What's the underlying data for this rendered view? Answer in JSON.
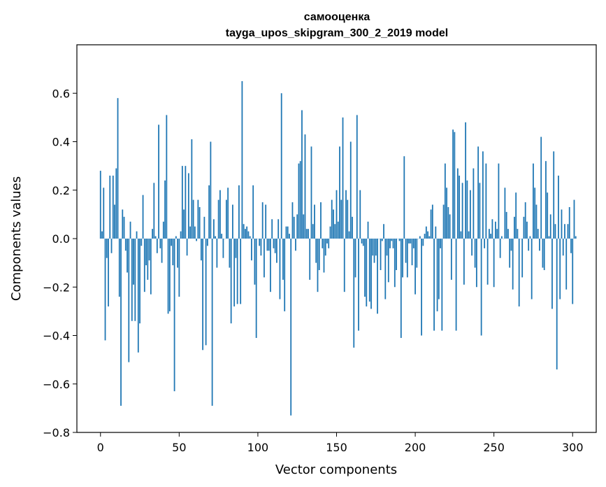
{
  "chart_data": {
    "type": "bar",
    "title": "самооценка",
    "subtitle": "tayga_upos_skipgram_300_2_2019 model",
    "xlabel": "Vector components",
    "ylabel": "Components values",
    "xlim": [
      -15,
      315
    ],
    "ylim": [
      -0.8,
      0.8
    ],
    "xticks": [
      0,
      50,
      100,
      150,
      200,
      250,
      300
    ],
    "yticks": [
      -0.8,
      -0.6,
      -0.4,
      -0.2,
      0.0,
      0.2,
      0.4,
      0.6
    ],
    "ytick_labels": [
      "−0.8",
      "−0.6",
      "−0.4",
      "−0.2",
      "0.0",
      "0.2",
      "0.4",
      "0.6"
    ],
    "xtick_labels": [
      "0",
      "50",
      "100",
      "150",
      "200",
      "250",
      "300"
    ],
    "bar_color": "#1f77b4",
    "values": [
      0.28,
      0.03,
      0.21,
      -0.42,
      -0.08,
      -0.28,
      0.26,
      -0.06,
      0.26,
      0.14,
      0.29,
      0.58,
      -0.24,
      -0.69,
      0.12,
      0.09,
      -0.05,
      -0.14,
      -0.51,
      0.07,
      -0.34,
      -0.19,
      -0.34,
      0.03,
      -0.47,
      -0.35,
      -0.03,
      0.18,
      -0.22,
      -0.11,
      -0.17,
      -0.09,
      -0.23,
      0.04,
      0.23,
      0.01,
      -0.06,
      0.47,
      -0.04,
      -0.1,
      0.07,
      0.24,
      0.51,
      -0.31,
      -0.3,
      -0.03,
      -0.11,
      -0.63,
      0.01,
      -0.12,
      -0.24,
      0.03,
      0.3,
      0.12,
      0.3,
      -0.07,
      0.27,
      0.05,
      0.41,
      0.16,
      0.05,
      -0.01,
      0.16,
      0.13,
      -0.09,
      -0.46,
      0.09,
      -0.44,
      -0.03,
      0.22,
      0.4,
      -0.69,
      0.08,
      0.01,
      -0.12,
      0.16,
      0.2,
      0.02,
      -0.08,
      0.0,
      0.16,
      0.21,
      -0.12,
      -0.35,
      0.14,
      -0.28,
      -0.08,
      -0.27,
      0.22,
      -0.27,
      0.65,
      0.06,
      0.04,
      0.05,
      0.03,
      0.01,
      -0.09,
      0.22,
      -0.19,
      -0.41,
      0.0,
      -0.03,
      -0.07,
      0.15,
      -0.16,
      0.14,
      -0.05,
      -0.05,
      -0.22,
      0.08,
      -0.04,
      -0.06,
      -0.1,
      0.08,
      -0.25,
      0.6,
      -0.17,
      -0.3,
      0.05,
      0.05,
      0.02,
      -0.73,
      0.15,
      0.09,
      -0.05,
      0.1,
      0.31,
      0.32,
      0.53,
      0.1,
      0.43,
      0.04,
      0.04,
      -0.17,
      0.38,
      0.06,
      0.14,
      -0.1,
      -0.22,
      -0.13,
      0.15,
      -0.04,
      -0.14,
      -0.07,
      -0.02,
      -0.04,
      0.05,
      0.16,
      0.12,
      0.06,
      0.2,
      0.07,
      0.38,
      0.16,
      0.5,
      -0.22,
      0.2,
      0.16,
      0.03,
      0.4,
      0.09,
      -0.45,
      -0.16,
      0.51,
      -0.38,
      0.2,
      -0.02,
      -0.03,
      -0.24,
      -0.28,
      0.07,
      -0.26,
      -0.29,
      -0.07,
      -0.1,
      -0.07,
      -0.31,
      0.0,
      -0.13,
      -0.01,
      0.06,
      -0.25,
      -0.07,
      -0.18,
      -0.04,
      -0.01,
      -0.04,
      -0.2,
      -0.13,
      0.0,
      -0.01,
      -0.41,
      -0.16,
      0.34,
      -0.1,
      -0.16,
      -0.02,
      -0.02,
      -0.11,
      -0.04,
      -0.23,
      -0.12,
      0.0,
      0.01,
      -0.4,
      -0.03,
      0.02,
      0.05,
      0.03,
      0.01,
      0.12,
      0.14,
      -0.38,
      0.05,
      -0.3,
      -0.25,
      -0.04,
      -0.38,
      0.14,
      0.31,
      0.21,
      0.13,
      0.1,
      -0.17,
      0.45,
      0.44,
      -0.38,
      0.29,
      0.26,
      0.03,
      0.23,
      -0.19,
      0.48,
      0.24,
      0.03,
      0.2,
      -0.07,
      0.29,
      -0.12,
      -0.2,
      0.38,
      0.23,
      -0.4,
      0.36,
      -0.04,
      0.31,
      -0.19,
      0.04,
      0.02,
      0.08,
      -0.2,
      0.07,
      0.04,
      0.31,
      -0.08,
      0.01,
      0.0,
      0.21,
      0.11,
      0.04,
      -0.12,
      -0.05,
      -0.21,
      0.09,
      0.19,
      0.04,
      -0.28,
      0.0,
      -0.16,
      0.09,
      0.15,
      0.07,
      -0.05,
      0.01,
      -0.25,
      0.31,
      0.21,
      0.14,
      0.04,
      -0.05,
      0.42,
      -0.12,
      -0.13,
      0.32,
      0.19,
      0.01,
      0.1,
      -0.29,
      0.36,
      0.06,
      -0.54,
      0.26,
      -0.25,
      0.12,
      -0.07,
      0.06,
      -0.21,
      0.06,
      0.13,
      -0.06,
      -0.27,
      0.16,
      0.01
    ]
  }
}
